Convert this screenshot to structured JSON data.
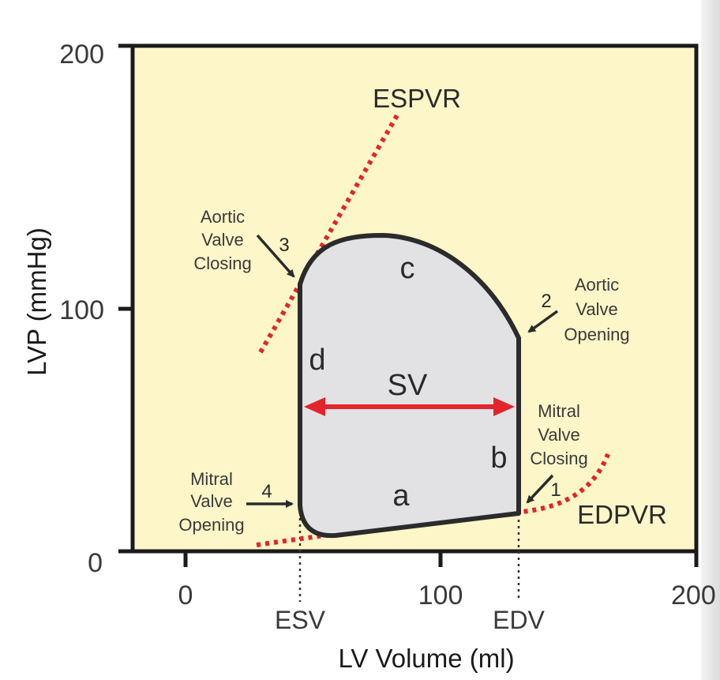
{
  "axes": {
    "y_title": "LVP (mmHg)",
    "x_title": "LV Volume (ml)",
    "y_ticks": [
      "0",
      "100",
      "200"
    ],
    "x_ticks": [
      "0",
      "100",
      "200"
    ]
  },
  "relations": {
    "espvr": "ESPVR",
    "edpvr": "EDPVR"
  },
  "volume_markers": {
    "esv": "ESV",
    "edv": "EDV"
  },
  "stroke_volume": "SV",
  "segments": {
    "a": "a",
    "b": "b",
    "c": "c",
    "d": "d"
  },
  "valve_events": [
    {
      "number": "1",
      "lines": [
        "Mitral",
        "Valve",
        "Closing"
      ]
    },
    {
      "number": "2",
      "lines": [
        "Aortic",
        "Valve",
        "Opening"
      ]
    },
    {
      "number": "3",
      "lines": [
        "Aortic",
        "Valve",
        "Closing"
      ]
    },
    {
      "number": "4",
      "lines": [
        "Mitral",
        "Valve",
        "Opening"
      ]
    }
  ],
  "colors": {
    "plot_background": "#fdf6c8",
    "loop_fill": "#e2e2e4",
    "loop_stroke": "#2b2b2b",
    "relation_dots": "#e3242b",
    "sv_arrow": "#e3242b",
    "axis": "#1a1a1a"
  }
}
